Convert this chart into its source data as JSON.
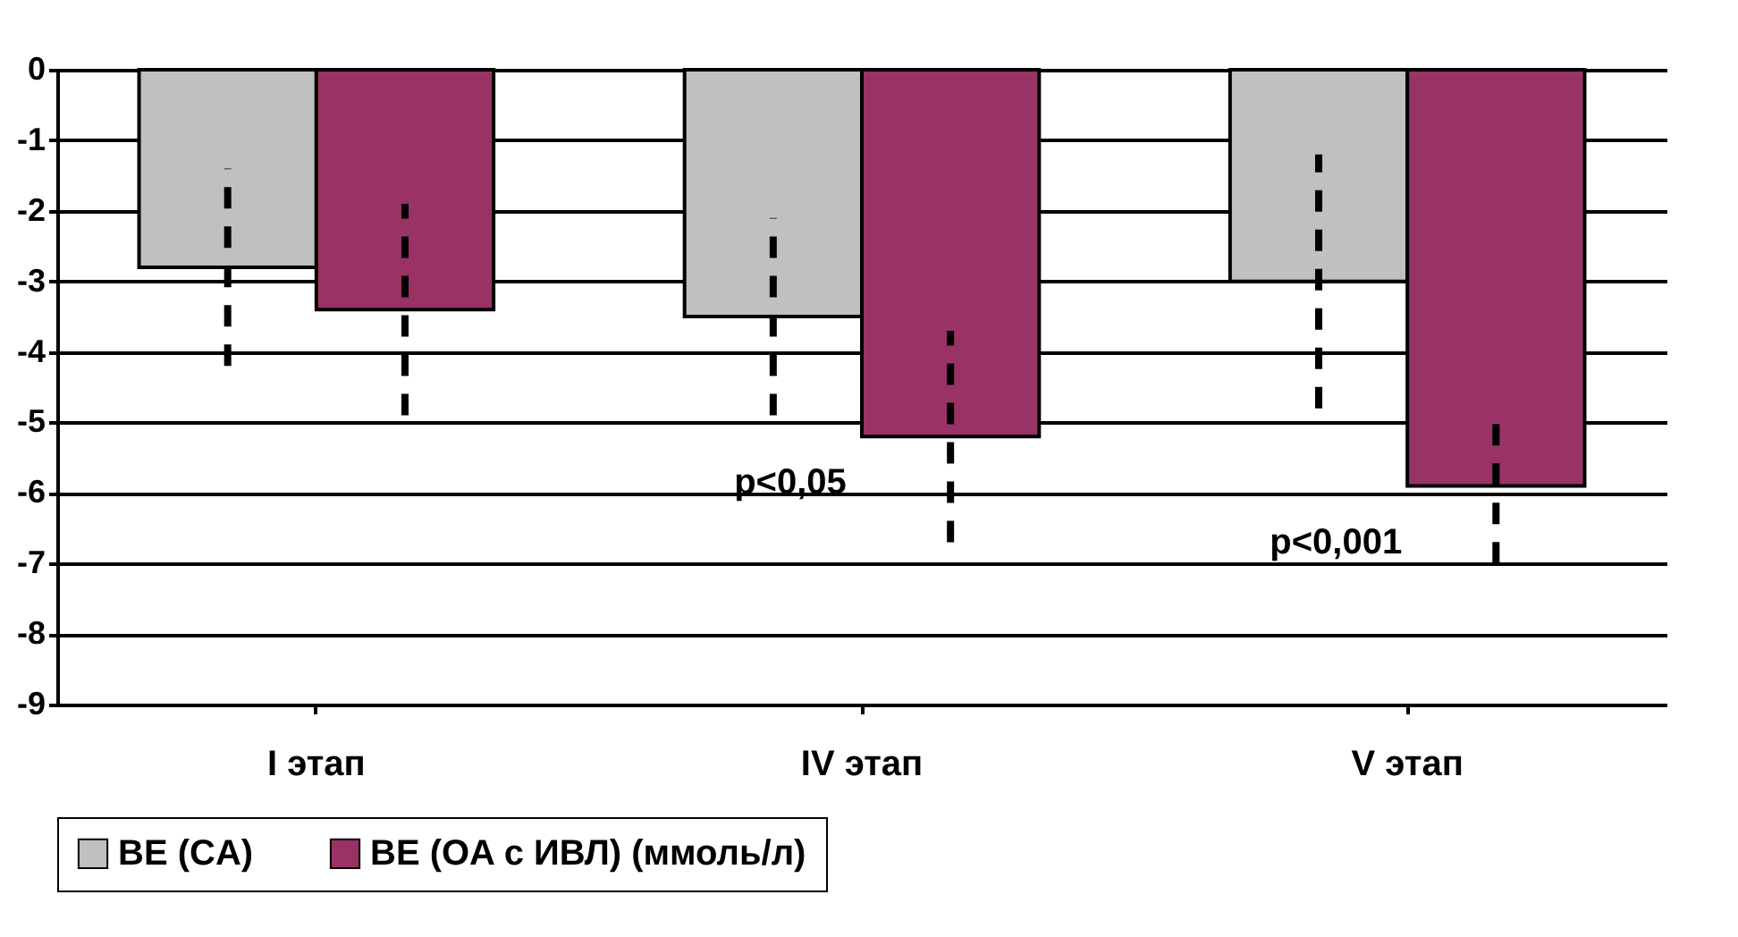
{
  "chart_data": {
    "type": "bar",
    "categories": [
      "I этап",
      "IV этап",
      "V этап"
    ],
    "series": [
      {
        "name": "BE (CA)",
        "color": "#c0c0c0",
        "values": [
          -2.8,
          -3.5,
          -3.0
        ],
        "errors": [
          1.4,
          1.4,
          1.8
        ]
      },
      {
        "name": "BE (OA с ИВЛ) (ммоль/л)",
        "color": "#993366",
        "values": [
          -3.4,
          -5.2,
          -5.9
        ],
        "errors": [
          1.5,
          1.5,
          1.1
        ]
      }
    ],
    "ylim": [
      -9,
      0
    ],
    "yticks": [
      0,
      -1,
      -2,
      -3,
      -4,
      -5,
      -6,
      -7,
      -8,
      -9
    ],
    "grid": "y",
    "legend": "bottom",
    "annotations": [
      "p<0,05",
      "p<0,001"
    ]
  }
}
